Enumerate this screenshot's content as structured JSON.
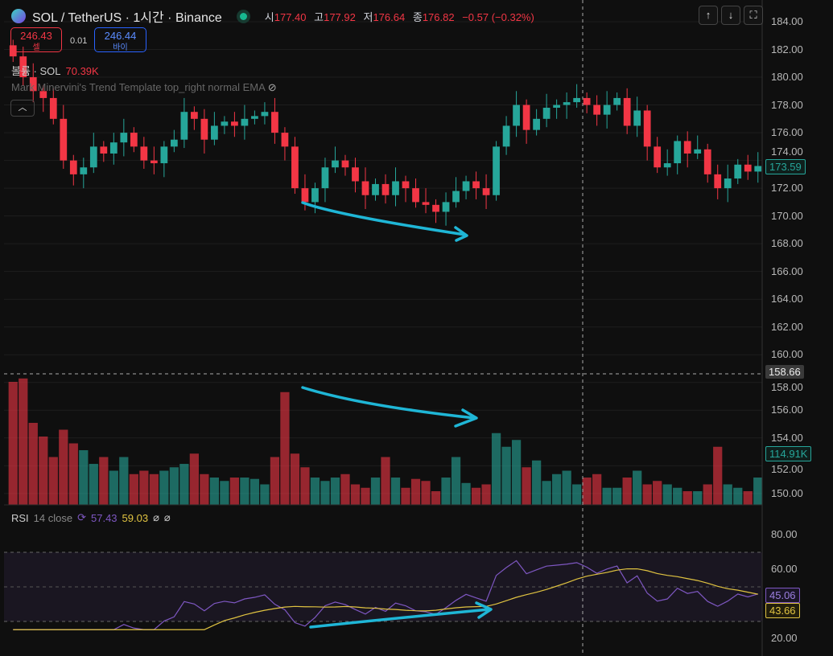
{
  "header": {
    "symbol": "SOL / TetherUS · 1시간 · Binance",
    "open_label": "시",
    "open": "177.40",
    "high_label": "고",
    "high": "177.92",
    "low_label": "저",
    "low": "176.64",
    "close_label": "종",
    "close": "176.82",
    "change": "−0.57 (−0.32%)"
  },
  "trade": {
    "sell_price": "246.43",
    "sell_label": "셀",
    "spread": "0.01",
    "buy_price": "246.44",
    "buy_label": "바이"
  },
  "volume_legend": {
    "label": "볼륨 · SOL",
    "value": "70.39K"
  },
  "indicator": {
    "label": "Mark Minervini's Trend Template top_right normal EMA",
    "icon": "eye-off-icon"
  },
  "collapse_icon": "chevron-up-icon",
  "toolbar": {
    "up": "↑",
    "down": "↓",
    "fullscreen": "⛶"
  },
  "rsi_legend": {
    "name": "RSI",
    "params": "14 close",
    "value": "57.43",
    "ma": "59.03",
    "extra1": "⌀",
    "extra2": "⌀"
  },
  "colors": {
    "up": "#26a69a",
    "down": "#f23645",
    "rsi": "#7e57c2",
    "rsi_ma": "#e0c341",
    "arrow": "#1fb6d6"
  },
  "chart_data": {
    "type": "candlestick",
    "price_axis": {
      "ticks": [
        "184.00",
        "182.00",
        "180.00",
        "178.00",
        "176.00",
        "174.00",
        "172.00",
        "170.00",
        "168.00",
        "166.00",
        "164.00",
        "162.00",
        "160.00",
        "158.00",
        "156.00",
        "154.00",
        "152.00",
        "150.00"
      ],
      "ylim": [
        149,
        185
      ]
    },
    "last_price": "173.59",
    "crosshair_price": "158.66",
    "last_volume": "114.91K",
    "rsi_axis": {
      "ticks": [
        "80.00",
        "60.00",
        "20.00"
      ],
      "ylim": [
        15,
        85
      ],
      "bands": [
        70,
        30
      ]
    },
    "rsi_value": "45.06",
    "rsi_ma_value": "43.66",
    "closes": [
      181.5,
      180,
      179,
      178.5,
      177,
      174,
      173,
      173.5,
      175,
      174.5,
      175.3,
      176,
      175,
      174,
      173.8,
      175,
      175.5,
      177.5,
      177,
      175.5,
      176.5,
      176.8,
      176.5,
      177,
      177.2,
      177.5,
      176,
      175,
      172,
      171,
      172,
      173.5,
      174,
      173.5,
      172.5,
      171.5,
      172.3,
      171.5,
      172.5,
      172,
      171,
      170.8,
      170.3,
      171,
      171.8,
      172.5,
      172,
      171.5,
      175,
      176.5,
      178,
      176.2,
      177,
      177.8,
      178,
      178.2,
      178.5,
      178,
      177.3,
      178,
      178.5,
      176.5,
      177.6,
      175,
      173.5,
      173.8,
      175.4,
      174.5,
      174.8,
      173,
      172,
      172.7,
      173.7,
      173.2,
      173.6
    ],
    "volumes": [
      180,
      185,
      120,
      100,
      70,
      110,
      90,
      80,
      60,
      70,
      50,
      70,
      45,
      50,
      45,
      50,
      55,
      60,
      75,
      45,
      40,
      35,
      40,
      40,
      38,
      30,
      70,
      165,
      75,
      55,
      40,
      35,
      40,
      45,
      30,
      25,
      40,
      70,
      40,
      25,
      38,
      35,
      20,
      40,
      70,
      32,
      25,
      30,
      105,
      85,
      95,
      55,
      65,
      35,
      45,
      50,
      30,
      40,
      45,
      25,
      25,
      40,
      50,
      30,
      35,
      30,
      25,
      20,
      20,
      30,
      85,
      30,
      25,
      20,
      40
    ],
    "annotations": [
      "price-downtrend-arrow",
      "volume-downtrend-arrow",
      "rsi-uptrend-arrow"
    ]
  }
}
